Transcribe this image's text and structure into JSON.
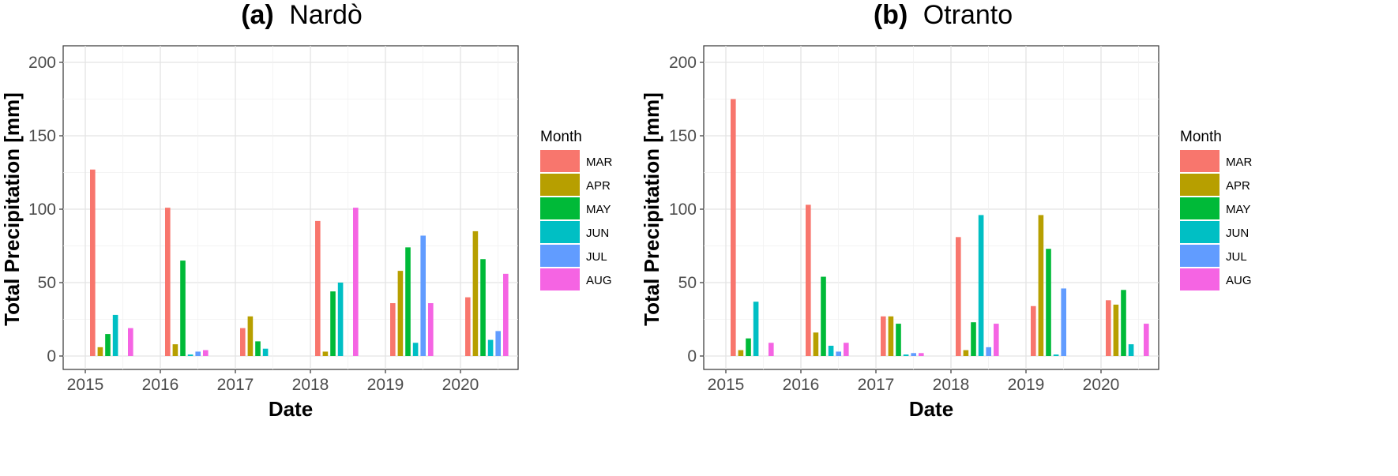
{
  "chart_data": [
    {
      "type": "bar",
      "title_prefix": "(a)",
      "title_name": "Nardò",
      "xlabel": "Date",
      "ylabel": "Total Precipitation [mm]",
      "ylim": [
        0,
        200
      ],
      "yticks": [
        0,
        50,
        100,
        150,
        200
      ],
      "categories": [
        "2015",
        "2016",
        "2017",
        "2018",
        "2019",
        "2020"
      ],
      "grid": true,
      "legend": {
        "title": "Month",
        "placement": "right"
      },
      "series": [
        {
          "name": "MAR",
          "color": "#F8766D",
          "values": [
            127,
            101,
            19,
            92,
            36,
            40
          ]
        },
        {
          "name": "APR",
          "color": "#B79F00",
          "values": [
            6,
            8,
            27,
            3,
            58,
            85
          ]
        },
        {
          "name": "MAY",
          "color": "#00BA38",
          "values": [
            15,
            65,
            10,
            44,
            74,
            66
          ]
        },
        {
          "name": "JUN",
          "color": "#00BFC4",
          "values": [
            28,
            1,
            5,
            50,
            9,
            11
          ]
        },
        {
          "name": "JUL",
          "color": "#619CFF",
          "values": [
            0,
            3,
            0,
            0,
            82,
            17
          ]
        },
        {
          "name": "AUG",
          "color": "#F564E3",
          "values": [
            19,
            4,
            0,
            101,
            36,
            56
          ]
        }
      ]
    },
    {
      "type": "bar",
      "title_prefix": "(b)",
      "title_name": "Otranto",
      "xlabel": "Date",
      "ylabel": "Total Precipitation [mm]",
      "ylim": [
        0,
        200
      ],
      "yticks": [
        0,
        50,
        100,
        150,
        200
      ],
      "categories": [
        "2015",
        "2016",
        "2017",
        "2018",
        "2019",
        "2020"
      ],
      "grid": true,
      "legend": {
        "title": "Month",
        "placement": "right"
      },
      "series": [
        {
          "name": "MAR",
          "color": "#F8766D",
          "values": [
            175,
            103,
            27,
            81,
            34,
            38
          ]
        },
        {
          "name": "APR",
          "color": "#B79F00",
          "values": [
            4,
            16,
            27,
            4,
            96,
            35
          ]
        },
        {
          "name": "MAY",
          "color": "#00BA38",
          "values": [
            12,
            54,
            22,
            23,
            73,
            45
          ]
        },
        {
          "name": "JUN",
          "color": "#00BFC4",
          "values": [
            37,
            7,
            1,
            96,
            1,
            8
          ]
        },
        {
          "name": "JUL",
          "color": "#619CFF",
          "values": [
            0,
            3,
            2,
            6,
            46,
            0
          ]
        },
        {
          "name": "AUG",
          "color": "#F564E3",
          "values": [
            9,
            9,
            2,
            22,
            0,
            22
          ]
        }
      ]
    }
  ]
}
